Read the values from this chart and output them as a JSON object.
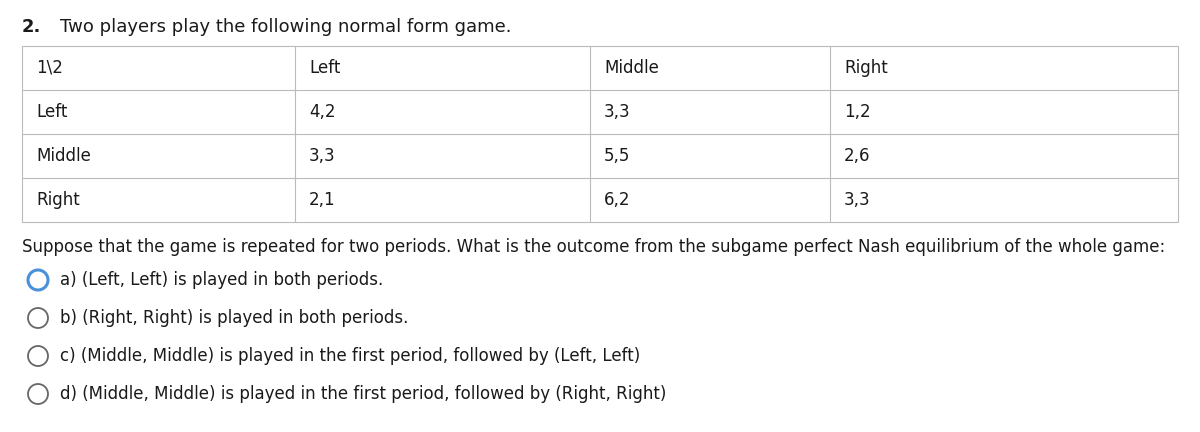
{
  "question_number": "2.",
  "question_text": "Two players play the following normal form game.",
  "table": {
    "header": [
      "1\\2",
      "Left",
      "Middle",
      "Right"
    ],
    "rows": [
      [
        "Left",
        "4,2",
        "3,3",
        "1,2"
      ],
      [
        "Middle",
        "3,3",
        "5,5",
        "2,6"
      ],
      [
        "Right",
        "2,1",
        "6,2",
        "3,3"
      ]
    ]
  },
  "followup_text": "Suppose that the game is repeated for two periods. What is the outcome from the subgame perfect Nash equilibrium of the whole game:",
  "options": [
    {
      "label": "a)",
      "text": "(Left, Left) is played in both periods.",
      "selected": true
    },
    {
      "label": "b)",
      "text": "(Right, Right) is played in both periods.",
      "selected": false
    },
    {
      "label": "c)",
      "text": "(Middle, Middle) is played in the first period, followed by (Left, Left)",
      "selected": false
    },
    {
      "label": "d)",
      "text": "(Middle, Middle) is played in the first period, followed by (Right, Right)",
      "selected": false
    }
  ],
  "bg_color": "#ffffff",
  "text_color": "#1a1a1a",
  "table_border_color": "#bbbbbb",
  "selected_circle_color": "#4a90d9",
  "unselected_circle_color": "#666666",
  "font_size_question": 13,
  "font_size_table": 12,
  "font_size_options": 12,
  "font_size_followup": 12
}
